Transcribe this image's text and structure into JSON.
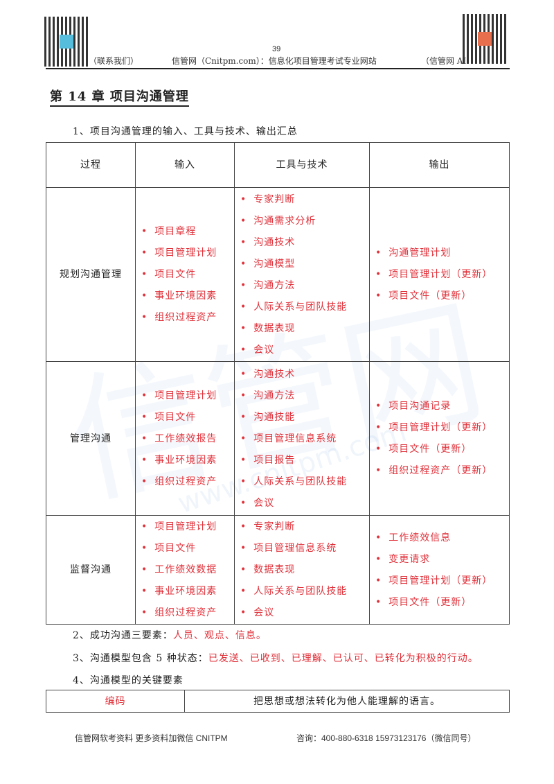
{
  "header": {
    "page_number": "39",
    "left": "（联系我们）",
    "center": "信管网（Cnitpm.com）：信息化项目管理考试专业网站",
    "right": "（信管网 AI"
  },
  "chapter_title": "第 14 章  项目沟通管理",
  "section1": "1、项目沟通管理的输入、工具与技术、输出汇总",
  "table": {
    "headers": [
      "过程",
      "输入",
      "工具与技术",
      "输出"
    ],
    "rows": [
      {
        "process": "规划沟通管理",
        "inputs": [
          "项目章程",
          "项目管理计划",
          "项目文件",
          "事业环境因素",
          "组织过程资产"
        ],
        "tools": [
          "专家判断",
          "沟通需求分析",
          "沟通技术",
          "沟通模型",
          "沟通方法",
          "人际关系与团队技能",
          "数据表现",
          "会议"
        ],
        "outputs": [
          "沟通管理计划",
          "项目管理计划（更新）",
          "项目文件（更新）"
        ]
      },
      {
        "process": "管理沟通",
        "inputs": [
          "项目管理计划",
          "项目文件",
          "工作绩效报告",
          "事业环境因素",
          "组织过程资产"
        ],
        "tools": [
          "沟通技术",
          "沟通方法",
          "沟通技能",
          "项目管理信息系统",
          "项目报告",
          "人际关系与团队技能",
          "会议"
        ],
        "outputs": [
          "项目沟通记录",
          "项目管理计划（更新）",
          "项目文件（更新）",
          "组织过程资产（更新）"
        ]
      },
      {
        "process": "监督沟通",
        "inputs": [
          "项目管理计划",
          "项目文件",
          "工作绩效数据",
          "事业环境因素",
          "组织过程资产"
        ],
        "tools": [
          "专家判断",
          "项目管理信息系统",
          "数据表现",
          "人际关系与团队技能",
          "会议"
        ],
        "outputs": [
          "工作绩效信息",
          "变更请求",
          "项目管理计划（更新）",
          "项目文件（更新）"
        ]
      }
    ]
  },
  "section2": {
    "label": "2、成功沟通三要素：",
    "value": "人员、观点、信息。"
  },
  "section3": {
    "label": "3、沟通模型包含 5 种状态：",
    "value": "已发送、已收到、已理解、已认可、已转化为积极的行动。"
  },
  "section4": "4、沟通模型的关键要素",
  "key_table": {
    "term": "编码",
    "definition": "把思想或想法转化为他人能理解的语言。"
  },
  "watermark": {
    "main": "信管网",
    "url": "www.cnitpm.com"
  },
  "footer": {
    "left": "信管网软考资料     更多资料加微信 CNITPM",
    "right": "咨询：400-880-6318     15973123176（微信同号）"
  },
  "colors": {
    "accent_red": "#e0313a"
  }
}
